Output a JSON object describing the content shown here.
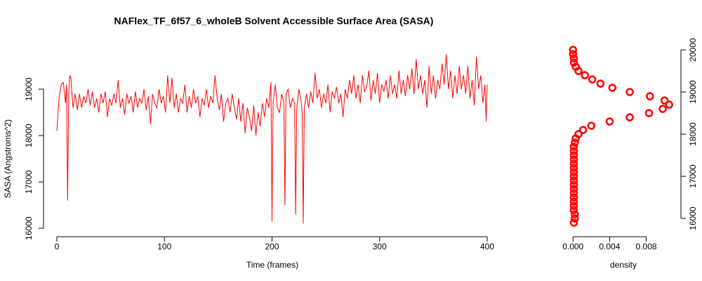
{
  "chart_data": [
    {
      "type": "line",
      "title": "NAFlex_TF_6f57_6_wholeB Solvent Accessible Surface Area (SASA)",
      "xlabel": "Time (frames)",
      "ylabel": "SASA (Angstroms^2)",
      "color": "#ff0000",
      "xlim": [
        0,
        400
      ],
      "xticks": [
        0,
        100,
        200,
        300,
        400
      ],
      "ylim": [
        16000,
        20000
      ],
      "yticks": [
        16000,
        17000,
        18000,
        19000
      ],
      "x": [
        0,
        2,
        4,
        6,
        8,
        9,
        10,
        11,
        12,
        13,
        15,
        17,
        19,
        21,
        23,
        25,
        27,
        29,
        31,
        33,
        35,
        37,
        39,
        41,
        43,
        45,
        47,
        49,
        51,
        53,
        55,
        57,
        59,
        61,
        63,
        65,
        67,
        69,
        71,
        73,
        75,
        77,
        79,
        81,
        83,
        85,
        87,
        89,
        91,
        93,
        95,
        97,
        99,
        101,
        103,
        105,
        107,
        109,
        111,
        113,
        115,
        117,
        119,
        121,
        123,
        125,
        127,
        129,
        131,
        133,
        135,
        137,
        139,
        141,
        143,
        145,
        147,
        149,
        151,
        153,
        155,
        157,
        159,
        161,
        163,
        165,
        167,
        169,
        171,
        173,
        175,
        177,
        179,
        181,
        183,
        185,
        187,
        189,
        191,
        193,
        195,
        197,
        199,
        200,
        201,
        203,
        205,
        207,
        209,
        211,
        212,
        213,
        215,
        217,
        219,
        221,
        222,
        223,
        225,
        227,
        228,
        229,
        230,
        232,
        234,
        236,
        238,
        240,
        242,
        244,
        246,
        248,
        250,
        252,
        254,
        256,
        258,
        260,
        262,
        264,
        266,
        268,
        270,
        272,
        274,
        276,
        278,
        280,
        282,
        284,
        286,
        288,
        290,
        292,
        294,
        296,
        298,
        300,
        302,
        304,
        306,
        308,
        310,
        312,
        314,
        316,
        318,
        320,
        322,
        324,
        326,
        328,
        330,
        332,
        334,
        336,
        338,
        340,
        342,
        344,
        346,
        348,
        350,
        352,
        354,
        356,
        358,
        360,
        362,
        364,
        366,
        368,
        370,
        372,
        374,
        376,
        378,
        380,
        382,
        384,
        386,
        388,
        390,
        392,
        394,
        396,
        398,
        399,
        400
      ],
      "values": [
        18100,
        18800,
        19100,
        19150,
        18700,
        19100,
        16600,
        18900,
        19300,
        19250,
        18600,
        18900,
        18550,
        18900,
        18600,
        18850,
        18700,
        19000,
        18650,
        18950,
        18600,
        18800,
        18500,
        18900,
        18700,
        18950,
        18400,
        18800,
        18650,
        18900,
        18700,
        19200,
        18600,
        18800,
        18450,
        18900,
        18700,
        18850,
        18500,
        18950,
        18600,
        18800,
        18700,
        19000,
        18550,
        18850,
        18250,
        18900,
        18700,
        18600,
        19000,
        18700,
        18850,
        18500,
        19300,
        18700,
        19250,
        18600,
        18900,
        18500,
        18800,
        18700,
        19100,
        18500,
        18850,
        18600,
        19000,
        18700,
        18850,
        18400,
        18800,
        18650,
        19000,
        18600,
        18850,
        18700,
        19300,
        18800,
        18550,
        18900,
        18300,
        18700,
        18800,
        18500,
        18900,
        18600,
        18350,
        18800,
        18300,
        18700,
        18050,
        18600,
        18400,
        18100,
        18650,
        18000,
        18500,
        18200,
        18700,
        18400,
        18800,
        18600,
        19150,
        16150,
        18700,
        19100,
        18600,
        18500,
        18900,
        18700,
        16500,
        18900,
        19000,
        18600,
        18800,
        18700,
        16300,
        18600,
        19000,
        18750,
        18500,
        16100,
        18600,
        18900,
        18600,
        18950,
        18700,
        19350,
        18800,
        19000,
        18600,
        18900,
        18700,
        19100,
        18500,
        18950,
        18800,
        19050,
        18700,
        18900,
        18400,
        19000,
        18800,
        19200,
        18900,
        19300,
        18800,
        19100,
        18700,
        19300,
        18950,
        19050,
        19400,
        18750,
        19200,
        18900,
        19350,
        18700,
        19100,
        18950,
        19200,
        18800,
        19300,
        18900,
        19100,
        18800,
        19400,
        18900,
        19200,
        18850,
        19300,
        19000,
        19450,
        18900,
        19650,
        19000,
        19300,
        18900,
        19200,
        18600,
        19500,
        18900,
        19300,
        18800,
        19200,
        19000,
        19550,
        19100,
        19750,
        19000,
        19400,
        18800,
        19300,
        18900,
        19500,
        19000,
        19300,
        18900,
        19500,
        18800,
        19200,
        18650,
        19700,
        19000,
        19300,
        18700,
        19100,
        18300,
        19100
      ]
    },
    {
      "type": "scatter",
      "xlabel": "density",
      "color": "#ff0000",
      "xlim": [
        -0.0004,
        0.0111
      ],
      "xticks": [
        {
          "value": 0,
          "label": "0.000"
        },
        {
          "value": 0.004,
          "label": "0.004"
        },
        {
          "value": 0.008,
          "label": "0.008"
        }
      ],
      "ylim": [
        15900,
        20100
      ],
      "yticks": [
        16000,
        17000,
        18000,
        19000,
        20000
      ],
      "x": [
        0.0001,
        0.0002,
        0.0002,
        0.0001,
        0.0001,
        0.0001,
        0.0001,
        0.0001,
        0.0001,
        0.0001,
        0.0001,
        0.0001,
        0.0001,
        0.0001,
        0.0001,
        0.0001,
        0.0001,
        0.0001,
        0.0001,
        0.0002,
        0.0003,
        0.0006,
        0.0011,
        0.002,
        0.004,
        0.0062,
        0.0083,
        0.0098,
        0.0105,
        0.01,
        0.0084,
        0.0062,
        0.0043,
        0.003,
        0.0021,
        0.0013,
        0.0006,
        0.0003,
        0.0001,
        0.0001,
        0,
        0
      ],
      "values": [
        15900,
        16000,
        16100,
        16200,
        16300,
        16400,
        16500,
        16600,
        16700,
        16800,
        16900,
        17000,
        17100,
        17200,
        17300,
        17400,
        17500,
        17600,
        17700,
        17800,
        17900,
        18000,
        18100,
        18200,
        18300,
        18400,
        18500,
        18600,
        18700,
        18800,
        18900,
        19000,
        19100,
        19200,
        19300,
        19400,
        19500,
        19600,
        19700,
        19800,
        19900,
        20000
      ]
    }
  ]
}
